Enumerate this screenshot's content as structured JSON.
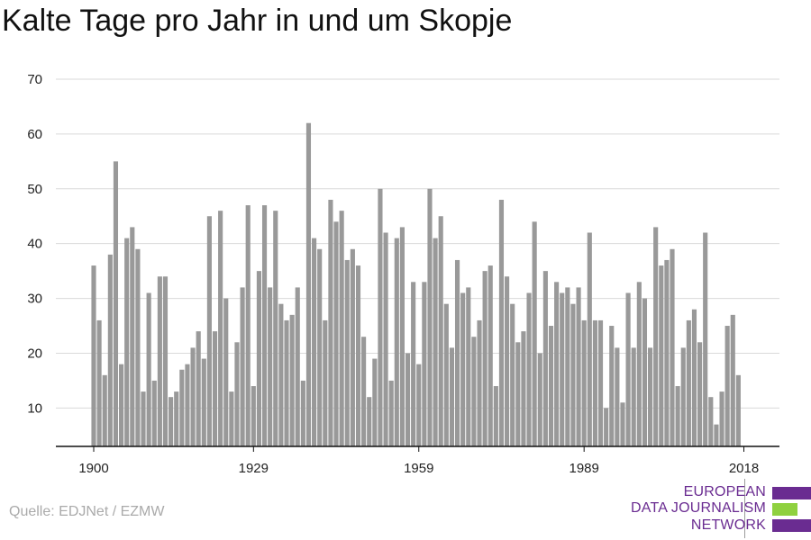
{
  "colors": {
    "bar": "#999999",
    "grid": "#d9d9d9",
    "axis": "#111111",
    "logo_purple": "#6a2c91",
    "logo_green": "#8fd13f"
  },
  "source_text": "Quelle: EDJNet / EZMW",
  "logo": {
    "line1": "EUROPEAN",
    "line2": "DATA JOURNALISM",
    "line3": "NETWORK"
  },
  "chart_data": {
    "type": "bar",
    "title": "Kalte Tage pro Jahr in und um Skopje",
    "xlabel": "",
    "ylabel": "",
    "ylim": [
      3,
      70
    ],
    "xlim": [
      1900,
      2018
    ],
    "grid": true,
    "y_ticks": [
      10,
      20,
      30,
      40,
      50,
      60,
      70
    ],
    "x_ticks": [
      1900,
      1929,
      1959,
      1989,
      2018
    ],
    "x": [
      1900,
      1901,
      1902,
      1903,
      1904,
      1905,
      1906,
      1907,
      1908,
      1909,
      1910,
      1911,
      1912,
      1913,
      1914,
      1915,
      1916,
      1917,
      1918,
      1919,
      1920,
      1921,
      1922,
      1923,
      1924,
      1925,
      1926,
      1927,
      1928,
      1929,
      1930,
      1931,
      1932,
      1933,
      1934,
      1935,
      1936,
      1937,
      1938,
      1939,
      1940,
      1941,
      1942,
      1943,
      1944,
      1945,
      1946,
      1947,
      1948,
      1949,
      1950,
      1951,
      1952,
      1953,
      1954,
      1955,
      1956,
      1957,
      1958,
      1959,
      1960,
      1961,
      1962,
      1963,
      1964,
      1965,
      1966,
      1967,
      1968,
      1969,
      1970,
      1971,
      1972,
      1973,
      1974,
      1975,
      1976,
      1977,
      1978,
      1979,
      1980,
      1981,
      1982,
      1983,
      1984,
      1985,
      1986,
      1987,
      1988,
      1989,
      1990,
      1991,
      1992,
      1993,
      1994,
      1995,
      1996,
      1997,
      1998,
      1999,
      2000,
      2001,
      2002,
      2003,
      2004,
      2005,
      2006,
      2007,
      2008,
      2009,
      2010,
      2011,
      2012,
      2013,
      2014,
      2015,
      2016,
      2017
    ],
    "values": [
      36,
      26,
      16,
      38,
      55,
      18,
      41,
      43,
      39,
      13,
      31,
      15,
      34,
      34,
      12,
      13,
      17,
      18,
      21,
      24,
      19,
      45,
      24,
      46,
      30,
      13,
      22,
      32,
      47,
      14,
      35,
      47,
      32,
      46,
      29,
      26,
      27,
      32,
      15,
      62,
      41,
      39,
      26,
      48,
      44,
      46,
      37,
      39,
      36,
      23,
      12,
      19,
      50,
      42,
      15,
      41,
      43,
      20,
      33,
      18,
      33,
      50,
      41,
      45,
      29,
      21,
      37,
      31,
      32,
      23,
      26,
      35,
      36,
      14,
      48,
      34,
      29,
      22,
      24,
      31,
      44,
      20,
      35,
      25,
      33,
      31,
      32,
      29,
      32,
      26,
      42,
      26,
      26,
      10,
      25,
      21,
      11,
      31,
      21,
      33,
      30,
      21,
      43,
      36,
      37,
      39,
      14,
      21,
      26,
      28,
      22,
      42,
      12,
      7,
      13,
      25,
      27,
      16
    ]
  }
}
